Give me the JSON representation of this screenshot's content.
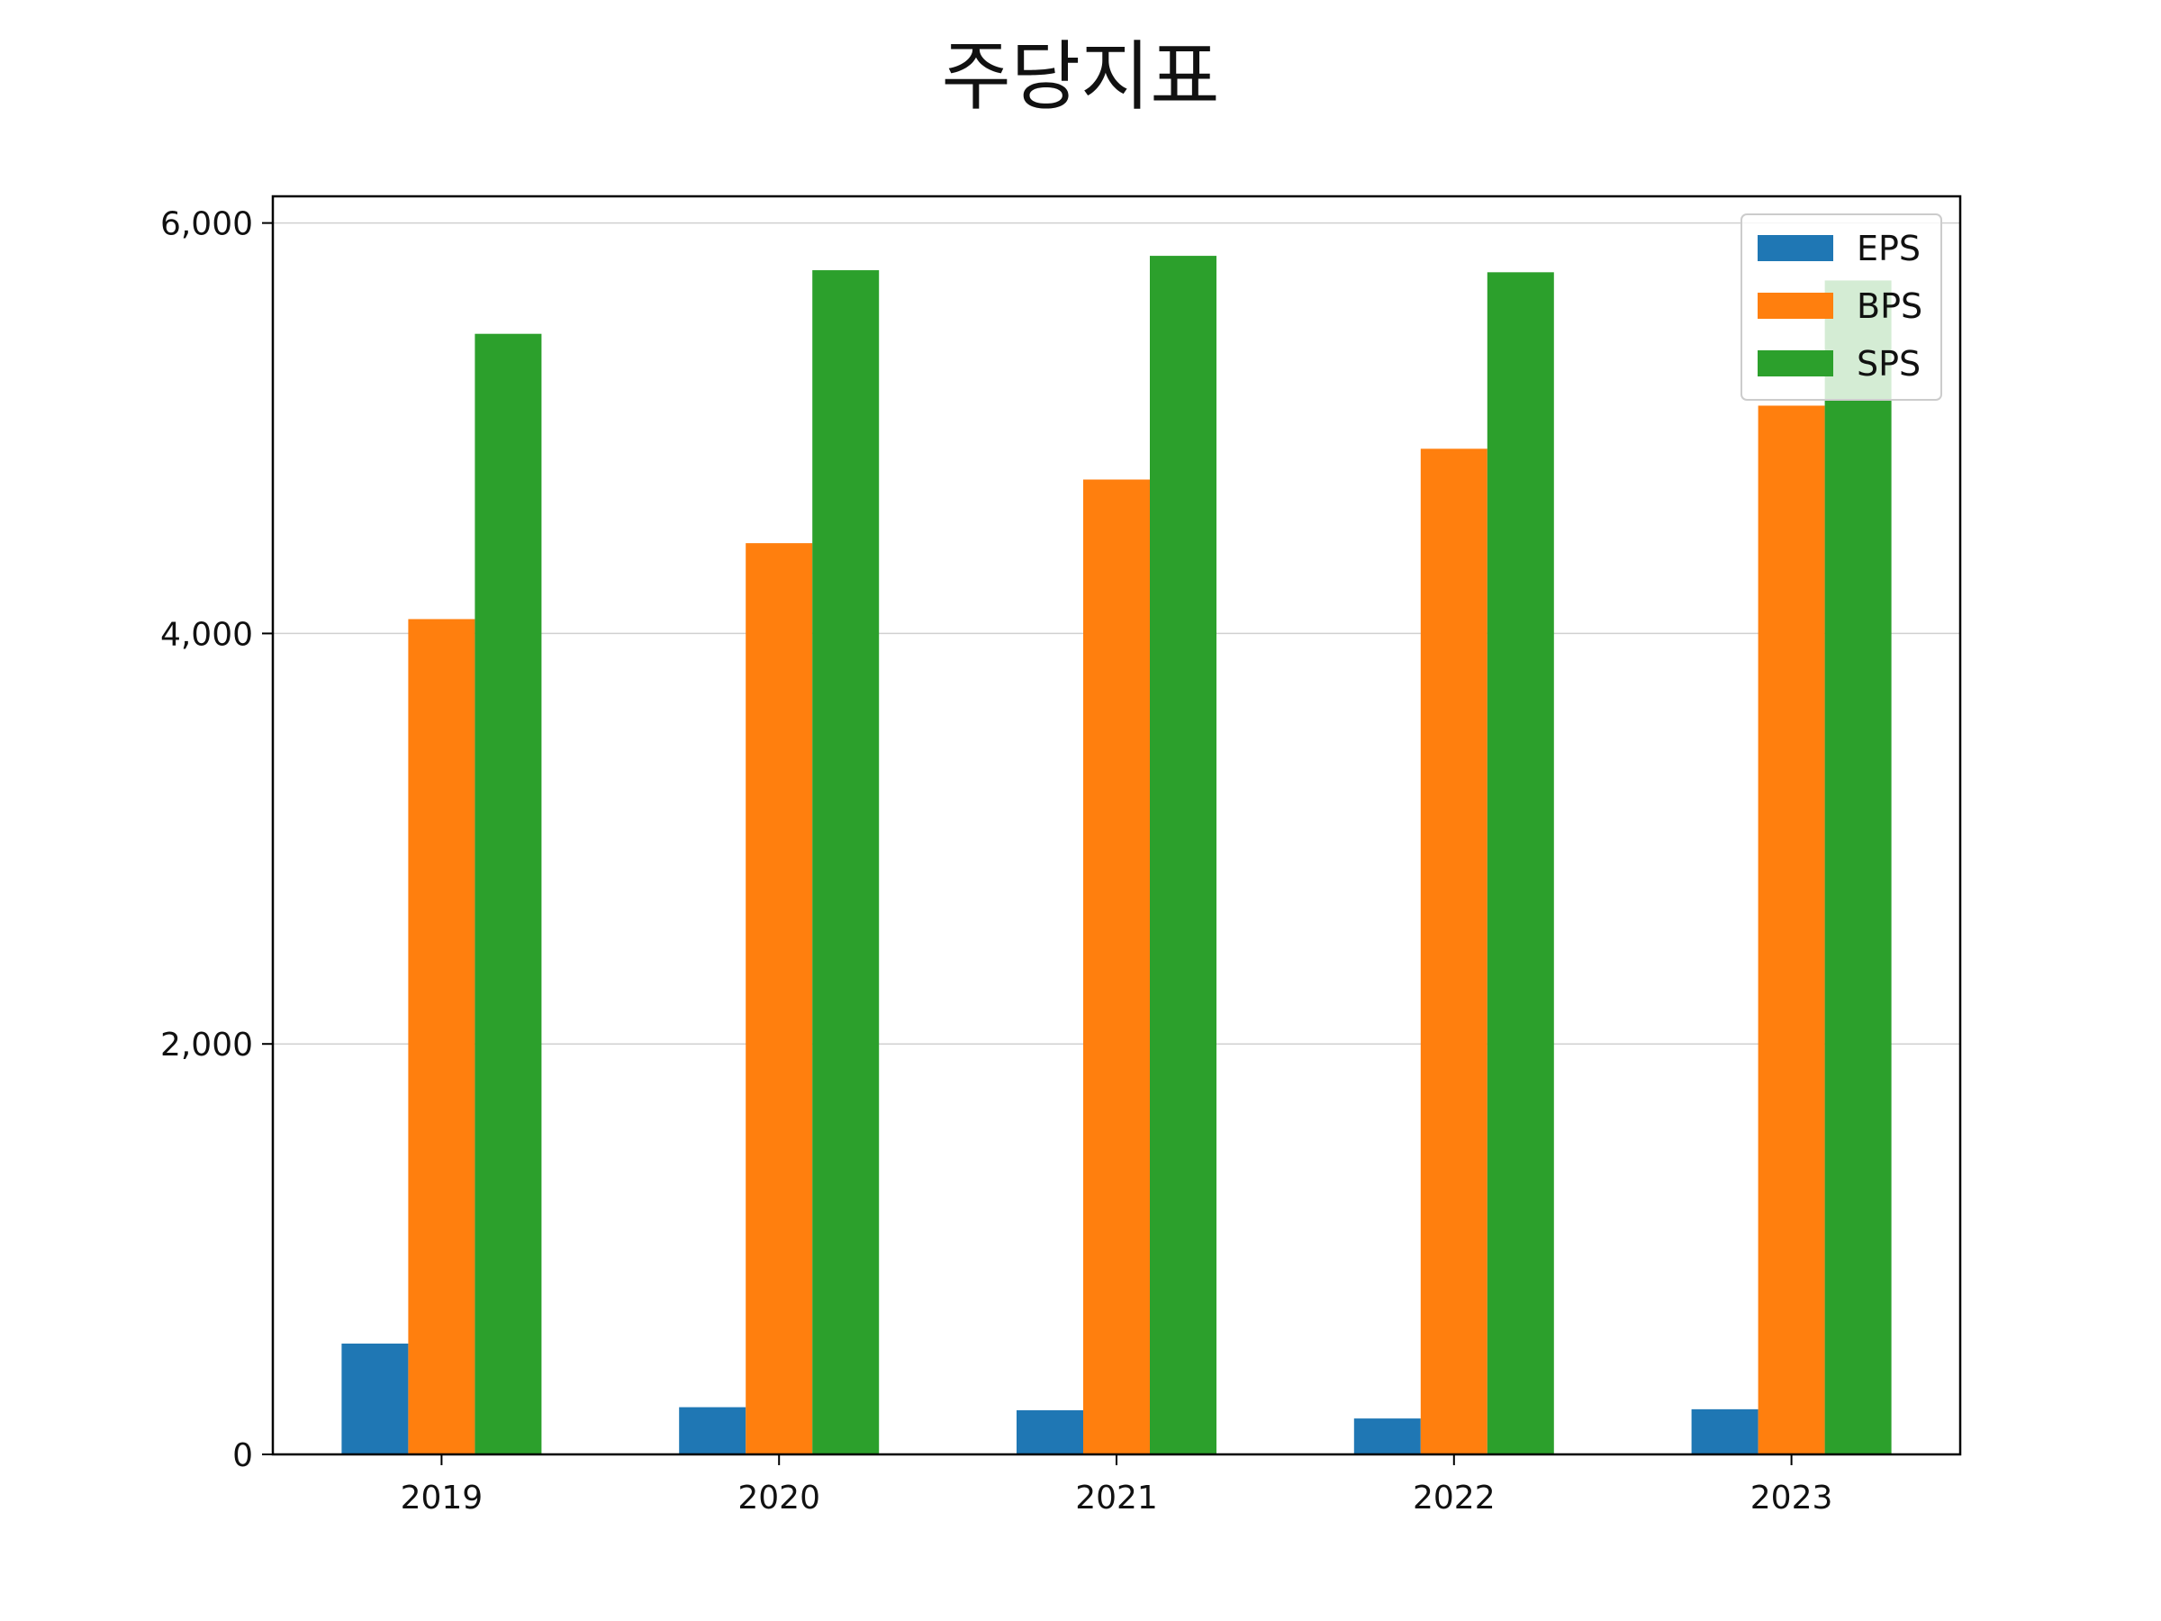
{
  "chart_data": {
    "type": "bar",
    "title": "주당지표",
    "xlabel": "",
    "ylabel": "",
    "categories": [
      "2019",
      "2020",
      "2021",
      "2022",
      "2023"
    ],
    "series": [
      {
        "name": "EPS",
        "color": "#1f77b4",
        "values": [
          540,
          230,
          215,
          175,
          220
        ]
      },
      {
        "name": "BPS",
        "color": "#ff7f0e",
        "values": [
          4070,
          4440,
          4750,
          4900,
          5110
        ]
      },
      {
        "name": "SPS",
        "color": "#2ca02c",
        "values": [
          5460,
          5770,
          5840,
          5760,
          5720
        ]
      }
    ],
    "ylim": [
      0,
      6130
    ],
    "yticks": [
      0,
      2000,
      4000,
      6000
    ],
    "ytick_labels": [
      "0",
      "2,000",
      "4,000",
      "6,000"
    ],
    "grid": "horizontal",
    "legend": "top-right"
  }
}
